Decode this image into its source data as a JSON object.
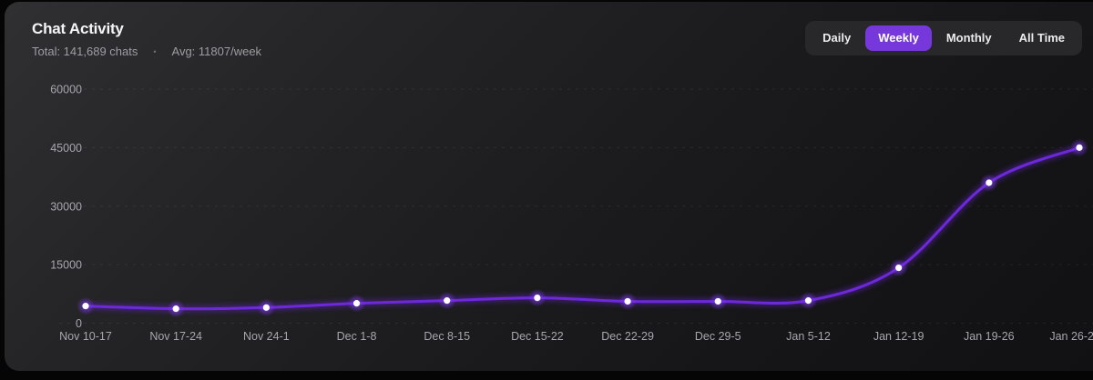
{
  "header": {
    "title": "Chat Activity",
    "total": "Total: 141,689 chats",
    "separator": "•",
    "average": "Avg: 11807/week"
  },
  "tabs": [
    {
      "label": "Daily",
      "active": false
    },
    {
      "label": "Weekly",
      "active": true
    },
    {
      "label": "Monthly",
      "active": false
    },
    {
      "label": "All Time",
      "active": false
    }
  ],
  "colors": {
    "accent": "#7638da",
    "line": "#6d28d9",
    "line_glow": "#5b21b6",
    "dot_core": "#ffffff",
    "dot_halo": "#7c3aed",
    "grid": "rgba(255,255,255,0.07)",
    "axis_text": "#a6a6ad"
  },
  "chart_data": {
    "type": "line",
    "title": "Chat Activity",
    "categories": [
      "Nov 10-17",
      "Nov 17-24",
      "Nov 24-1",
      "Dec 1-8",
      "Dec 8-15",
      "Dec 15-22",
      "Dec 22-29",
      "Dec 29-5",
      "Jan 5-12",
      "Jan 12-19",
      "Jan 19-26",
      "Jan 26-2"
    ],
    "series": [
      {
        "name": "chats",
        "values": [
          4400,
          3700,
          4000,
          5100,
          5800,
          6500,
          5600,
          5600,
          5800,
          14200,
          36000,
          45000
        ]
      }
    ],
    "xlabel": "",
    "ylabel": "",
    "ylim": [
      0,
      60000
    ],
    "yticks": [
      0,
      15000,
      30000,
      45000,
      60000
    ],
    "grid": "horizontal-dashed",
    "legend": "none"
  }
}
